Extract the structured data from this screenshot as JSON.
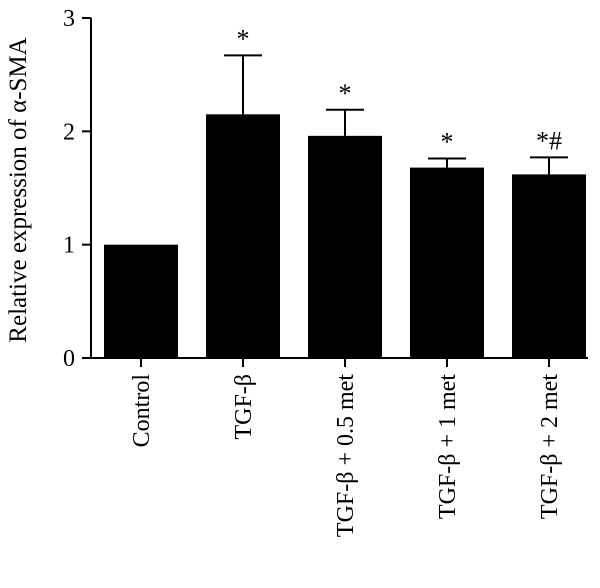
{
  "chart_data": {
    "type": "bar",
    "categories": [
      "Control",
      "TGF-β",
      "TGF-β + 0.5 met",
      "TGF-β + 1 met",
      "TGF-β + 2 met"
    ],
    "values": [
      1.0,
      2.15,
      1.96,
      1.68,
      1.62
    ],
    "errors": [
      0.0,
      0.52,
      0.23,
      0.08,
      0.15
    ],
    "annotations": [
      "",
      "*",
      "*",
      "*",
      "*#"
    ],
    "ylabel": "Relative expression of α-SMA",
    "xlabel": "",
    "ylim": [
      0,
      3
    ],
    "yticks": [
      0,
      1,
      2,
      3
    ],
    "bar_color": "#000000",
    "grid": false
  }
}
